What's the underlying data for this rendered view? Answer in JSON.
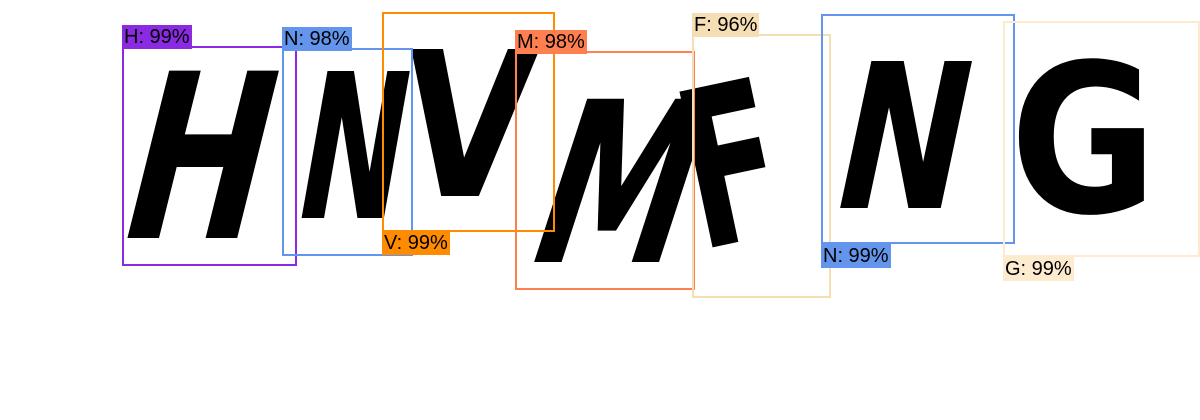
{
  "detections": [
    {
      "glyph": "H",
      "label": "H: 99%",
      "color": "#8a2be2"
    },
    {
      "glyph": "N",
      "label": "N: 98%",
      "color": "#6495ed"
    },
    {
      "glyph": "V",
      "label": "V: 99%",
      "color": "#ff8c00"
    },
    {
      "glyph": "M",
      "label": "M: 98%",
      "color": "#ff7f50"
    },
    {
      "glyph": "F",
      "label": "F: 96%",
      "color": "#f5deb3"
    },
    {
      "glyph": "N",
      "label": "N: 99%",
      "color": "#6495ed"
    },
    {
      "glyph": "G",
      "label": "G: 99%",
      "color": "#fdebd0"
    }
  ]
}
